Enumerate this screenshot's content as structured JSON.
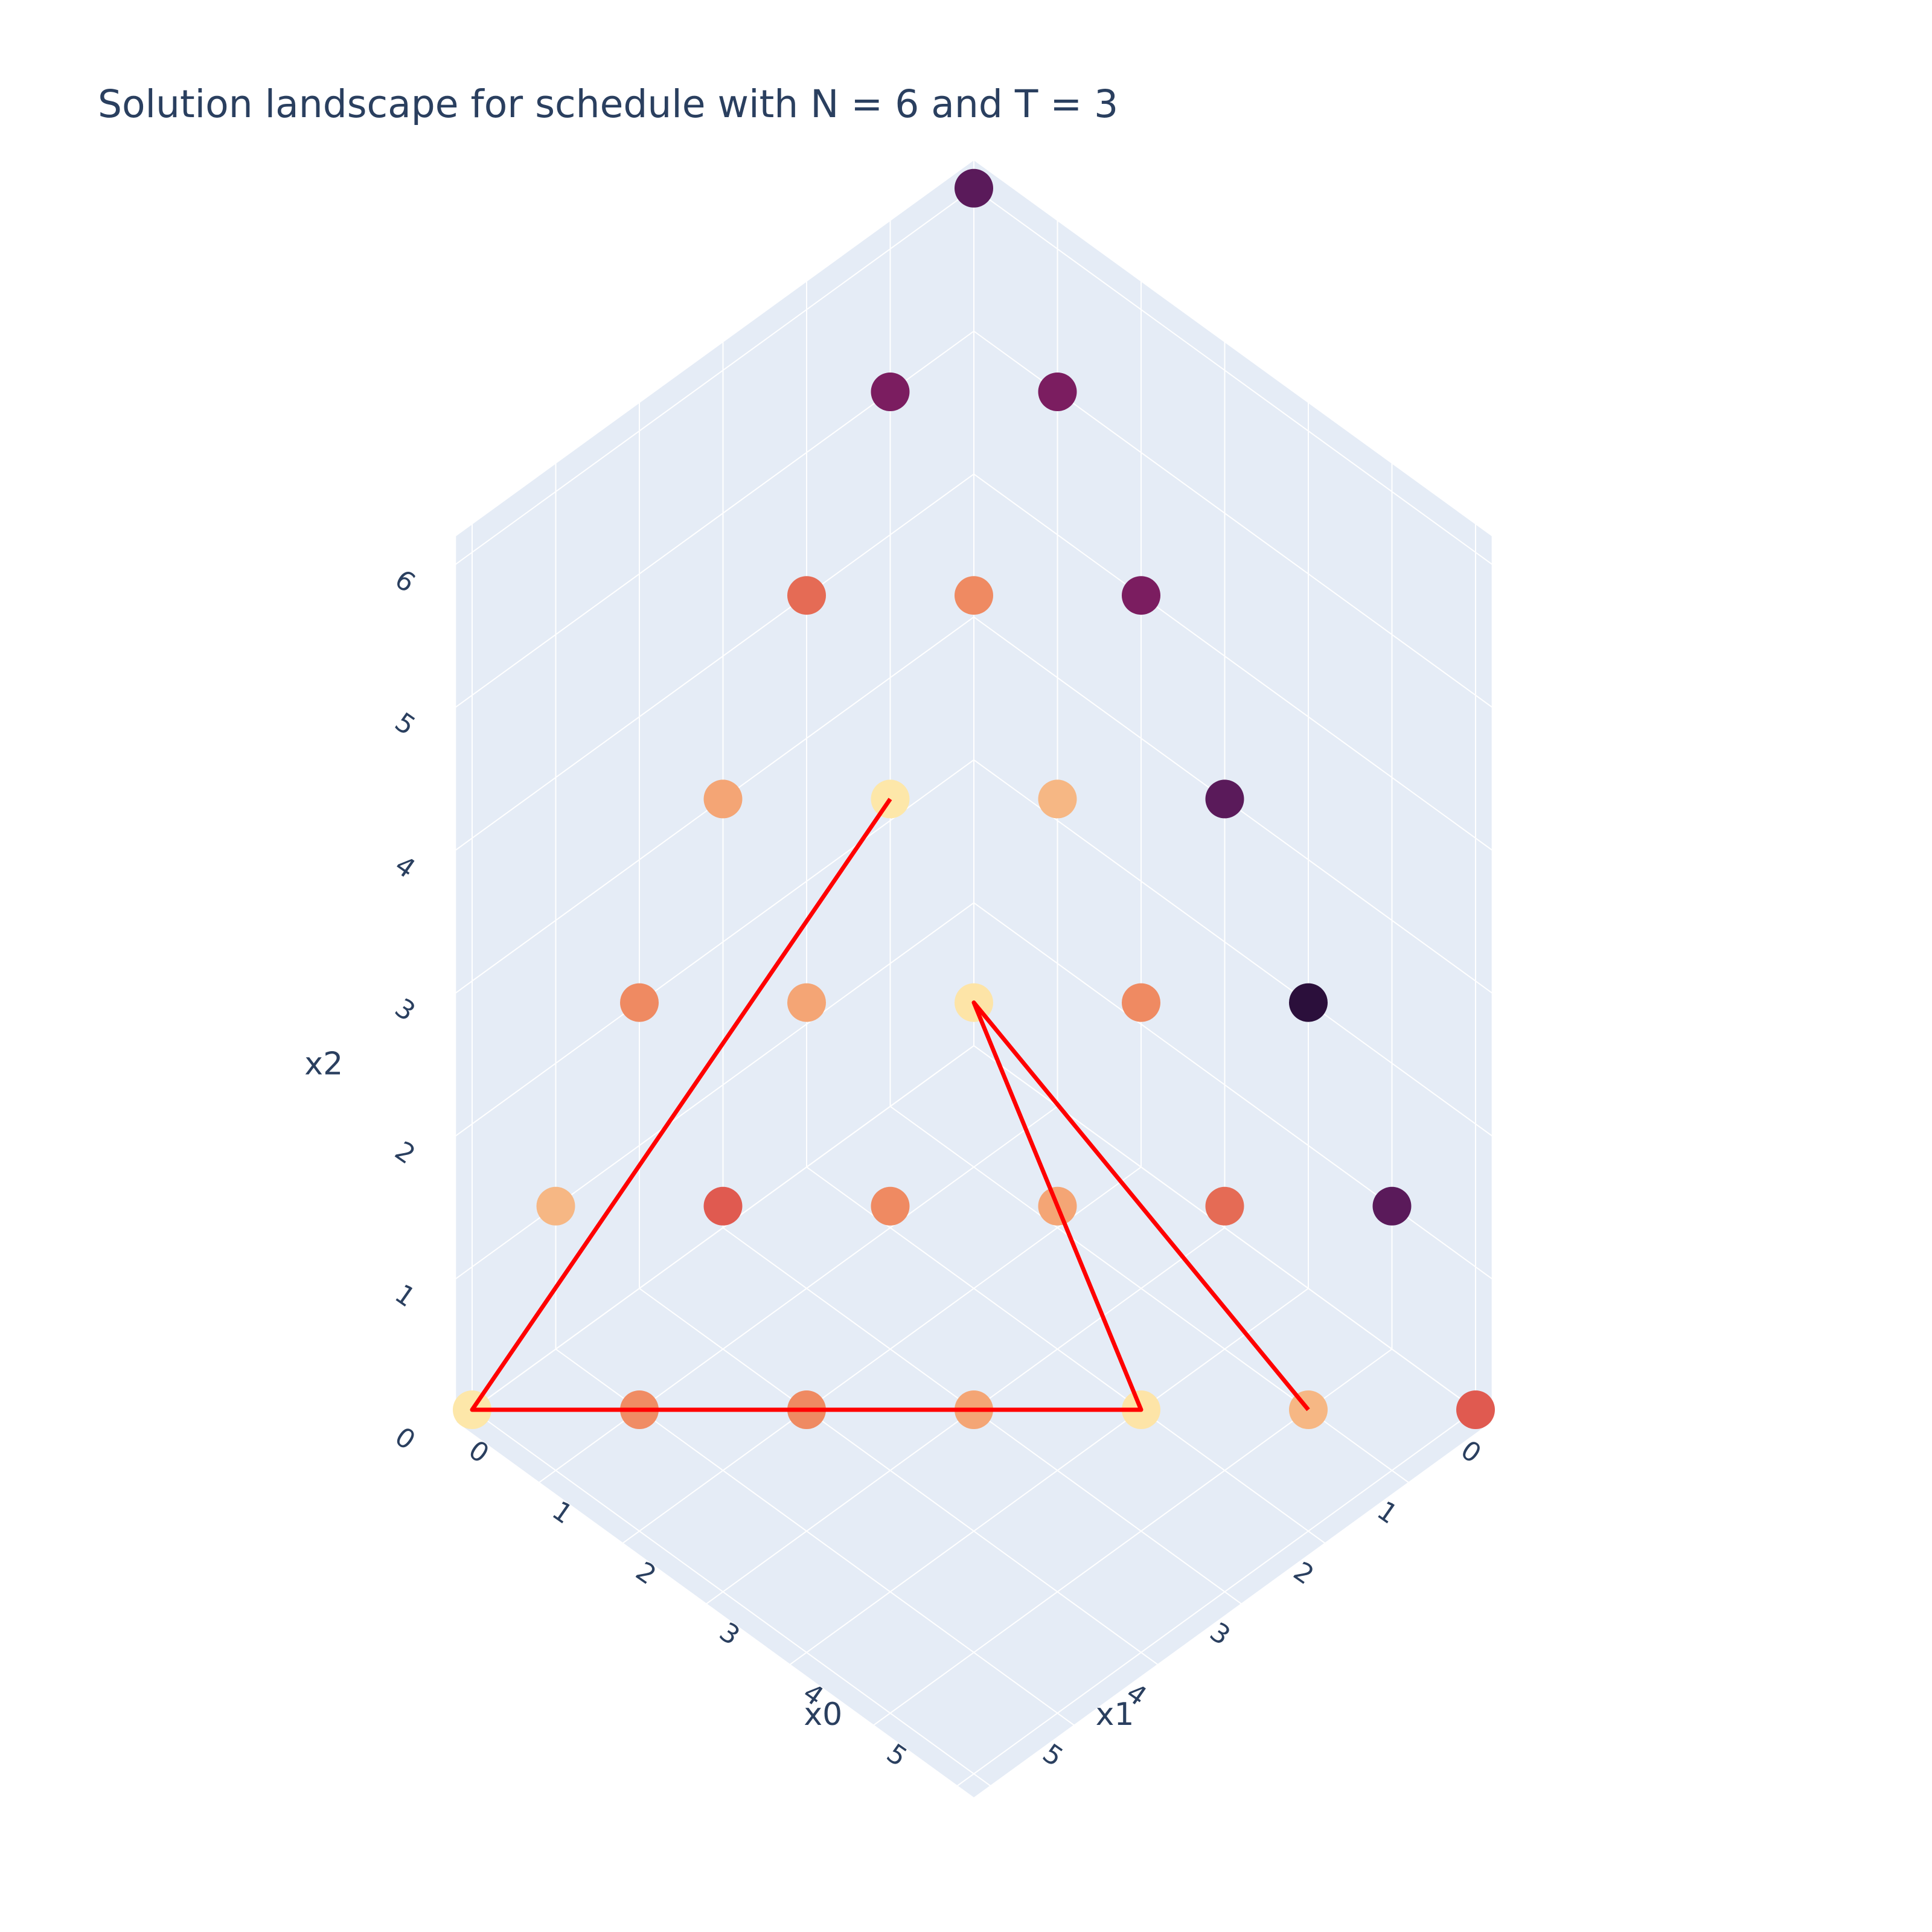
{
  "chart_data": {
    "type": "scatter3d",
    "title": "Solution landscape for schedule with N = 6 and T = 3",
    "axes": {
      "x": {
        "label": "x0",
        "range": [
          0,
          6
        ],
        "ticks": [
          "0",
          "1",
          "2",
          "3",
          "4",
          "5"
        ]
      },
      "y": {
        "label": "x1",
        "range": [
          0,
          6
        ],
        "ticks": [
          "0",
          "1",
          "2",
          "3",
          "4",
          "5"
        ]
      },
      "z": {
        "label": "x2",
        "range": [
          0,
          6
        ],
        "ticks": [
          "0",
          "1",
          "2",
          "3",
          "4",
          "5",
          "6"
        ]
      }
    },
    "points": [
      {
        "x": 0,
        "y": 0,
        "z": 6,
        "color": "#5a1a5a"
      },
      {
        "x": 1,
        "y": 0,
        "z": 5,
        "color": "#7b1d60"
      },
      {
        "x": 0,
        "y": 1,
        "z": 5,
        "color": "#7b1d60"
      },
      {
        "x": 2,
        "y": 0,
        "z": 4,
        "color": "#7b1d60"
      },
      {
        "x": 1,
        "y": 1,
        "z": 4,
        "color": "#ef8a62"
      },
      {
        "x": 0,
        "y": 2,
        "z": 4,
        "color": "#e56b55"
      },
      {
        "x": 3,
        "y": 0,
        "z": 3,
        "color": "#5a1a5a"
      },
      {
        "x": 2,
        "y": 1,
        "z": 3,
        "color": "#f6b784"
      },
      {
        "x": 1,
        "y": 2,
        "z": 3,
        "color": "#fde7a9"
      },
      {
        "x": 0,
        "y": 3,
        "z": 3,
        "color": "#f4a575"
      },
      {
        "x": 4,
        "y": 0,
        "z": 2,
        "color": "#2b0f3b"
      },
      {
        "x": 3,
        "y": 1,
        "z": 2,
        "color": "#ef8a62"
      },
      {
        "x": 2,
        "y": 2,
        "z": 2,
        "color": "#fde4a7"
      },
      {
        "x": 1,
        "y": 3,
        "z": 2,
        "color": "#f4a575"
      },
      {
        "x": 0,
        "y": 4,
        "z": 2,
        "color": "#ef8a62"
      },
      {
        "x": 5,
        "y": 0,
        "z": 1,
        "color": "#5a1a5a"
      },
      {
        "x": 4,
        "y": 1,
        "z": 1,
        "color": "#e56b55"
      },
      {
        "x": 3,
        "y": 2,
        "z": 1,
        "color": "#f4a575"
      },
      {
        "x": 2,
        "y": 3,
        "z": 1,
        "color": "#ef8a62"
      },
      {
        "x": 1,
        "y": 4,
        "z": 1,
        "color": "#e05a50"
      },
      {
        "x": 0,
        "y": 5,
        "z": 1,
        "color": "#f6b784"
      },
      {
        "x": 6,
        "y": 0,
        "z": 0,
        "color": "#e05a50"
      },
      {
        "x": 5,
        "y": 1,
        "z": 0,
        "color": "#f6b784"
      },
      {
        "x": 4,
        "y": 2,
        "z": 0,
        "color": "#fde4a7"
      },
      {
        "x": 3,
        "y": 3,
        "z": 0,
        "color": "#f4a575"
      },
      {
        "x": 2,
        "y": 4,
        "z": 0,
        "color": "#ef8a62"
      },
      {
        "x": 1,
        "y": 5,
        "z": 0,
        "color": "#f08c64"
      },
      {
        "x": 0,
        "y": 6,
        "z": 0,
        "color": "#fde7a9"
      }
    ],
    "path": {
      "color": "#ff0000",
      "points": [
        {
          "x": 1,
          "y": 2,
          "z": 3
        },
        {
          "x": 0,
          "y": 6,
          "z": 0
        },
        {
          "x": 4,
          "y": 2,
          "z": 0
        },
        {
          "x": 2,
          "y": 2,
          "z": 2
        },
        {
          "x": 5,
          "y": 1,
          "z": 0
        }
      ]
    },
    "colors": {
      "background": "#e5ecf6",
      "grid": "#ffffff",
      "text": "#2a3f5f"
    }
  }
}
